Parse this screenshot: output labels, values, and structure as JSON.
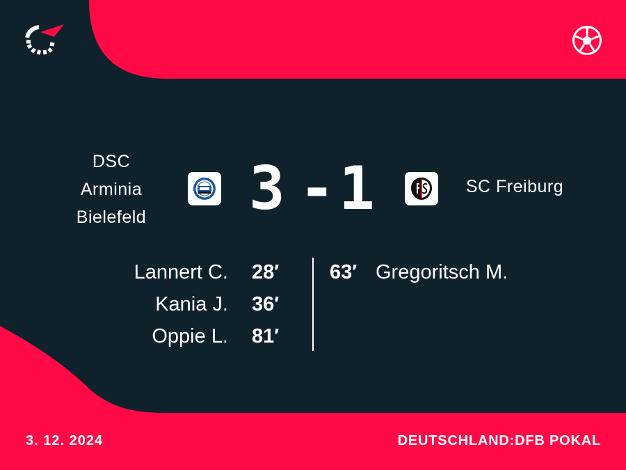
{
  "colors": {
    "brand_red": "#ff0a46",
    "background": "#0f222c",
    "text": "#ffffff"
  },
  "icons": {
    "logo": "flashscore-logo",
    "sport": "soccer-ball-icon"
  },
  "match": {
    "home_team": {
      "name_lines": [
        "DSC",
        "Arminia",
        "Bielefeld"
      ],
      "crest": "arminia-bielefeld-crest"
    },
    "away_team": {
      "name": "SC Freiburg",
      "crest": "sc-freiburg-crest"
    },
    "score": {
      "home": "3",
      "separator": "-",
      "away": "1"
    },
    "home_scorers": [
      {
        "player": "Lannert C.",
        "minute": "28′"
      },
      {
        "player": "Kania J.",
        "minute": "36′"
      },
      {
        "player": "Oppie L.",
        "minute": "81′"
      }
    ],
    "away_scorers": [
      {
        "player": "Gregoritsch M.",
        "minute": "63′"
      }
    ]
  },
  "footer": {
    "date": "3. 12. 2024",
    "competition": "DEUTSCHLAND:DFB POKAL"
  }
}
